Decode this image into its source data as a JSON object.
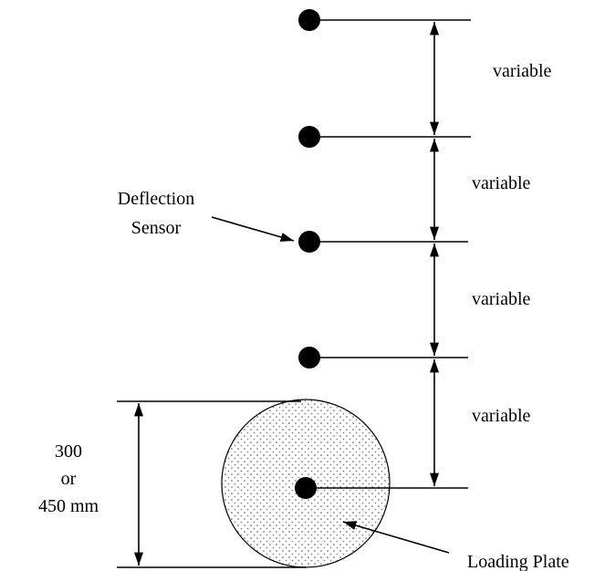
{
  "diagram": {
    "spacing_labels": [
      "variable",
      "variable",
      "variable",
      "variable"
    ],
    "sensor_label": [
      "Deflection",
      "Sensor"
    ],
    "plate_label": "Loading Plate",
    "diameter_label": [
      "300",
      "or",
      "450 mm"
    ]
  }
}
